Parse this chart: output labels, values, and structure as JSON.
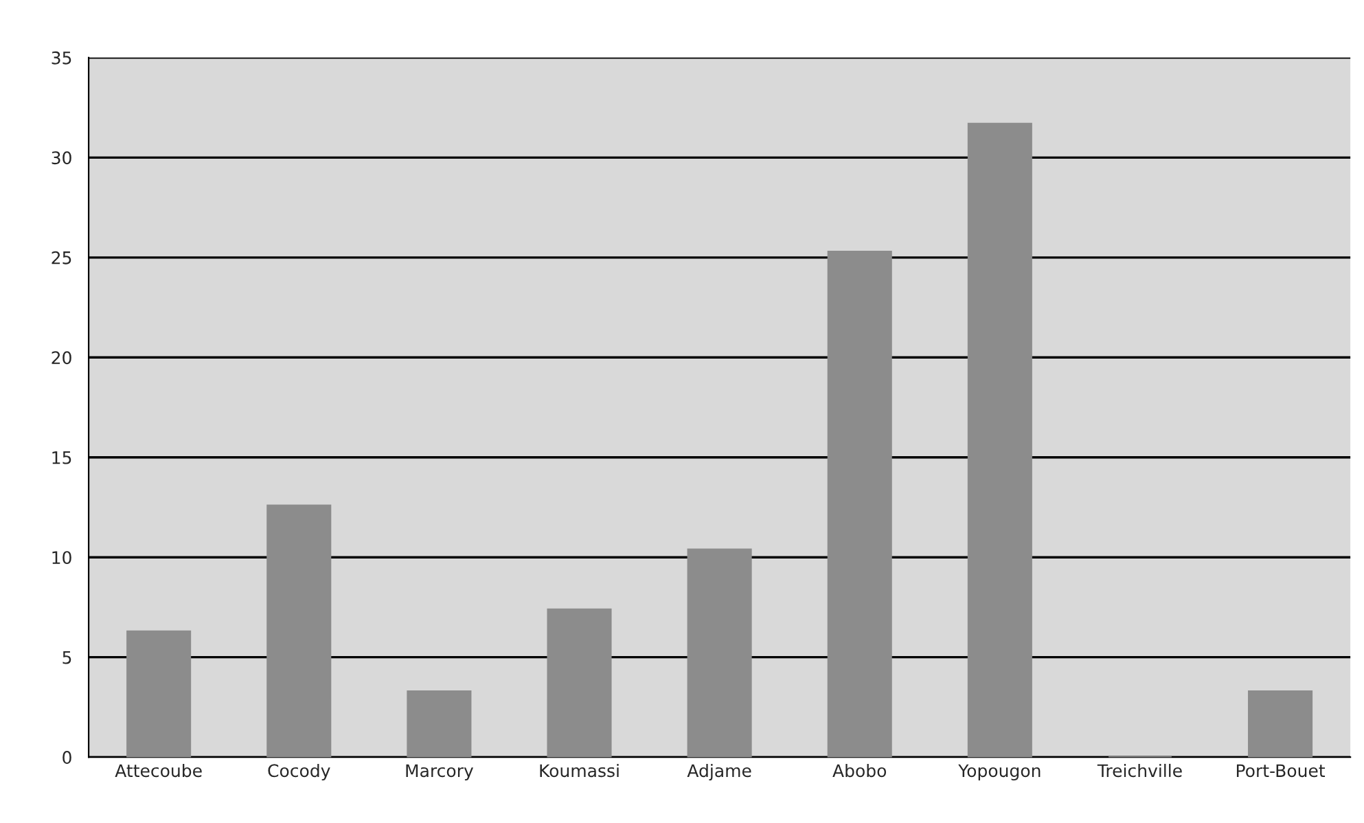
{
  "chart_data": {
    "type": "bar",
    "categories": [
      "Attecoube",
      "Cocody",
      "Marcory",
      "Koumassi",
      "Adjame",
      "Abobo",
      "Yopougon",
      "Treichville",
      "Port-Bouet"
    ],
    "values": [
      6.3,
      12.6,
      3.3,
      7.4,
      10.4,
      25.3,
      31.7,
      0,
      3.3
    ],
    "color": "#8c8c8c",
    "ylim": [
      0,
      35
    ],
    "yticks": [
      0,
      5,
      10,
      15,
      20,
      25,
      30,
      35
    ],
    "grid": "y"
  }
}
